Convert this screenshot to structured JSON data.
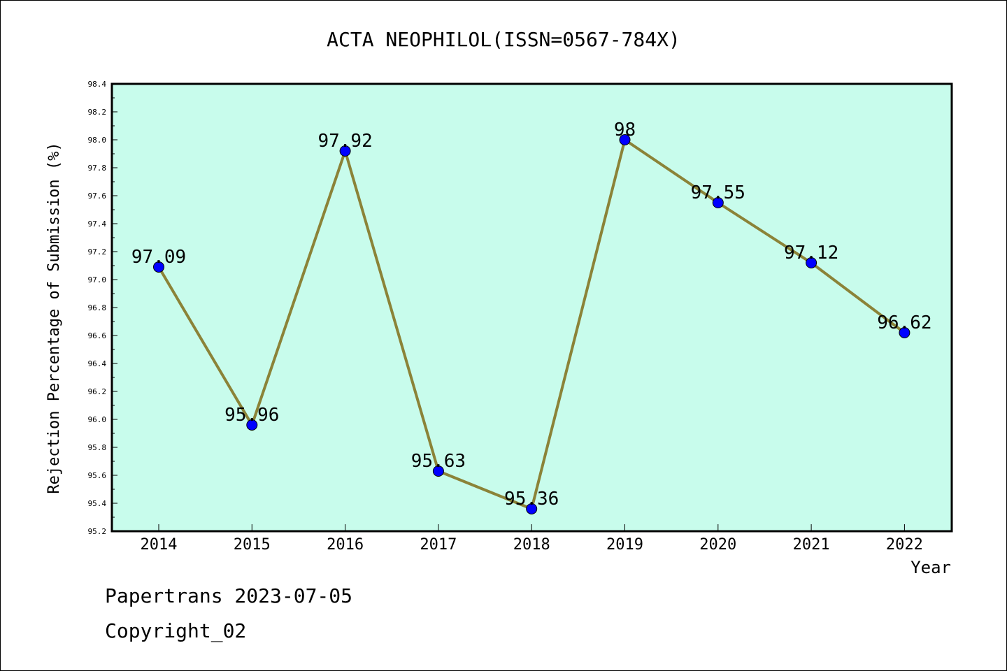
{
  "chart_data": {
    "type": "line",
    "title": "ACTA NEOPHILOL(ISSN=0567-784X)",
    "xlabel": "Year",
    "ylabel": "Rejection Percentage of Submission (%)",
    "categories": [
      "2014",
      "2015",
      "2016",
      "2017",
      "2018",
      "2019",
      "2020",
      "2021",
      "2022"
    ],
    "values": [
      97.09,
      95.96,
      97.92,
      95.63,
      95.36,
      98,
      97.55,
      97.12,
      96.62
    ],
    "data_labels": [
      "97.09",
      "95.96",
      "97.92",
      "95.63",
      "95.36",
      "98",
      "97.55",
      "97.12",
      "96.62"
    ],
    "ylim": [
      95.2,
      98.4
    ],
    "yticks": [
      "95.2",
      "95.4",
      "95.6",
      "95.8",
      "96.0",
      "96.2",
      "96.4",
      "96.6",
      "96.8",
      "97.0",
      "97.2",
      "97.4",
      "97.6",
      "97.8",
      "98.0",
      "98.2",
      "98.4"
    ],
    "grid": false,
    "colors": {
      "plot_background": "#c8fcec",
      "line": "#8b8338",
      "marker": "#0000ff"
    }
  },
  "footer": {
    "line1": "Papertrans 2023-07-05",
    "line2": "Copyright_02"
  }
}
